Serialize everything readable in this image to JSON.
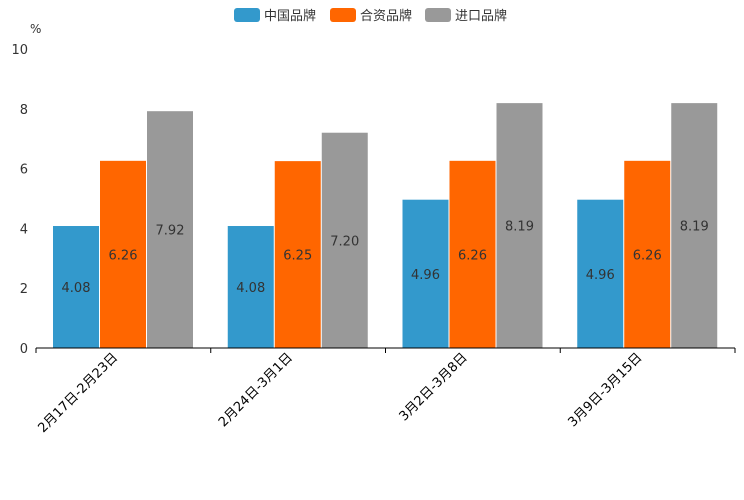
{
  "chart_data": {
    "type": "bar",
    "title": "",
    "xlabel": "",
    "ylabel": "%",
    "ylim": [
      0,
      10
    ],
    "yticks": [
      0,
      2,
      4,
      6,
      8,
      10
    ],
    "grid": false,
    "legend_position": "top-center",
    "categories": [
      "2月17日-2月23日",
      "2月24日-3月1日",
      "3月2日-3月8日",
      "3月9日-3月15日"
    ],
    "series": [
      {
        "name": "中国品牌",
        "color": "#3399cc",
        "values": [
          4.08,
          4.08,
          4.96,
          4.96
        ],
        "labels": [
          "4.08",
          "4.08",
          "4.96",
          "4.96"
        ]
      },
      {
        "name": "合资品牌",
        "color": "#ff6600",
        "values": [
          6.26,
          6.25,
          6.26,
          6.26
        ],
        "labels": [
          "6.26",
          "6.25",
          "6.26",
          "6.26"
        ]
      },
      {
        "name": "进口品牌",
        "color": "#999999",
        "values": [
          7.92,
          7.2,
          8.19,
          8.19
        ],
        "labels": [
          "7.92",
          "7.20",
          "8.19",
          "8.19"
        ]
      }
    ]
  }
}
